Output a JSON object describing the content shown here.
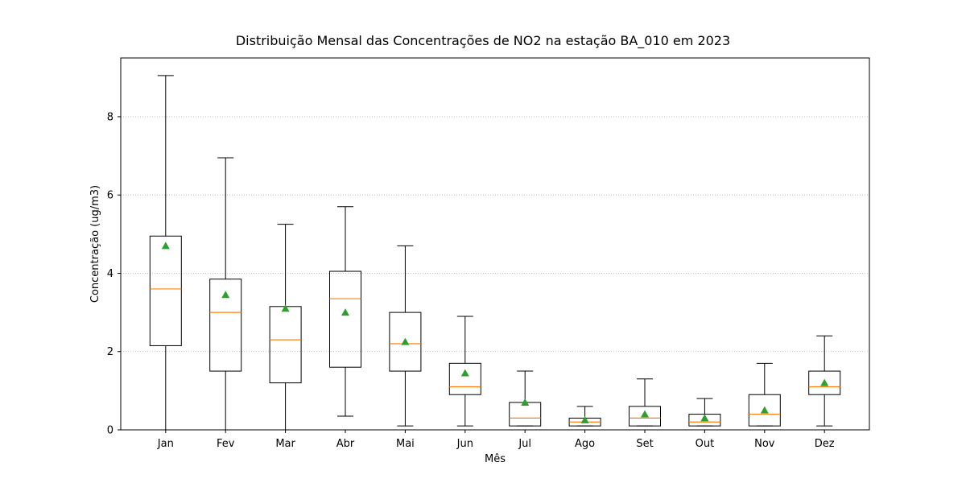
{
  "chart_data": {
    "type": "box",
    "title": "Distribuição Mensal das Concentrações de NO2 na estação BA_010 em 2023",
    "xlabel": "Mês",
    "ylabel": "Concentração (ug/m3)",
    "categories": [
      "Jan",
      "Fev",
      "Mar",
      "Abr",
      "Mai",
      "Jun",
      "Jul",
      "Ago",
      "Set",
      "Out",
      "Nov",
      "Dez"
    ],
    "ylim": [
      0,
      9.5
    ],
    "yticks": [
      0,
      2,
      4,
      6,
      8
    ],
    "grid": "y-dotted",
    "boxes": [
      {
        "whisker_low": 0.0,
        "q1": 2.15,
        "median": 3.6,
        "q3": 4.95,
        "whisker_high": 9.05,
        "mean": 4.7
      },
      {
        "whisker_low": 0.0,
        "q1": 1.5,
        "median": 3.0,
        "q3": 3.85,
        "whisker_high": 6.95,
        "mean": 3.45
      },
      {
        "whisker_low": 0.0,
        "q1": 1.2,
        "median": 2.3,
        "q3": 3.15,
        "whisker_high": 5.25,
        "mean": 3.1
      },
      {
        "whisker_low": 0.35,
        "q1": 1.6,
        "median": 3.35,
        "q3": 4.05,
        "whisker_high": 5.7,
        "mean": 3.0
      },
      {
        "whisker_low": 0.1,
        "q1": 1.5,
        "median": 2.2,
        "q3": 3.0,
        "whisker_high": 4.7,
        "mean": 2.25
      },
      {
        "whisker_low": 0.1,
        "q1": 0.9,
        "median": 1.1,
        "q3": 1.7,
        "whisker_high": 2.9,
        "mean": 1.45
      },
      {
        "whisker_low": 0.1,
        "q1": 0.1,
        "median": 0.3,
        "q3": 0.7,
        "whisker_high": 1.5,
        "mean": 0.7
      },
      {
        "whisker_low": 0.1,
        "q1": 0.1,
        "median": 0.2,
        "q3": 0.3,
        "whisker_high": 0.6,
        "mean": 0.25
      },
      {
        "whisker_low": 0.1,
        "q1": 0.1,
        "median": 0.3,
        "q3": 0.6,
        "whisker_high": 1.3,
        "mean": 0.4
      },
      {
        "whisker_low": 0.1,
        "q1": 0.1,
        "median": 0.2,
        "q3": 0.4,
        "whisker_high": 0.8,
        "mean": 0.3
      },
      {
        "whisker_low": 0.1,
        "q1": 0.1,
        "median": 0.4,
        "q3": 0.9,
        "whisker_high": 1.7,
        "mean": 0.5
      },
      {
        "whisker_low": 0.1,
        "q1": 0.9,
        "median": 1.1,
        "q3": 1.5,
        "whisker_high": 2.4,
        "mean": 1.2
      }
    ],
    "colors": {
      "box": "#000000",
      "median": "#ff7f0e",
      "mean": "#2ca02c",
      "grid": "#b0b0b0"
    }
  }
}
